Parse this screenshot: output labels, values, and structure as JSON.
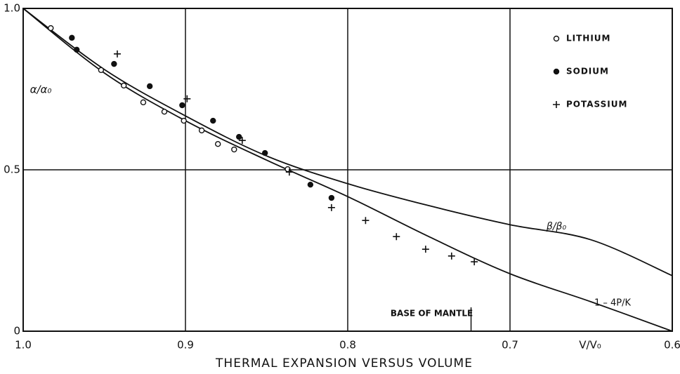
{
  "chart_data": {
    "type": "scatter",
    "title": "THERMAL EXPANSION VERSUS VOLUME",
    "x_label": "V/V₀",
    "y_label": "α/α₀",
    "xlim": [
      1,
      0.6
    ],
    "ylim": [
      0,
      1
    ],
    "xticks": [
      {
        "value": 1,
        "label": "1.0"
      },
      0.9,
      0.8,
      0.7,
      0.6
    ],
    "yticks": [
      0,
      0.5,
      {
        "value": 1,
        "label": "1.0"
      }
    ],
    "grid": true,
    "legend": "upper right",
    "series": [
      {
        "name": "LITHIUM",
        "color": "#111111",
        "marker": "open-circle",
        "x": [
          0.983,
          0.952,
          0.938,
          0.926,
          0.913,
          0.901,
          0.89,
          0.88,
          0.87,
          0.837
        ],
        "values": [
          0.939,
          0.809,
          0.761,
          0.709,
          0.68,
          0.652,
          0.622,
          0.58,
          0.563,
          0.502
        ]
      },
      {
        "name": "SODIUM",
        "color": "#111111",
        "marker": "filled-circle",
        "x": [
          0.97,
          0.967,
          0.944,
          0.922,
          0.902,
          0.883,
          0.867,
          0.851,
          0.823,
          0.81
        ],
        "values": [
          0.909,
          0.872,
          0.828,
          0.759,
          0.7,
          0.652,
          0.602,
          0.552,
          0.454,
          0.413
        ]
      },
      {
        "name": "POTASSIUM",
        "color": "#111111",
        "marker": "plus",
        "x": [
          0.942,
          0.899,
          0.865,
          0.836,
          0.81,
          0.789,
          0.77,
          0.752,
          0.736,
          0.722
        ],
        "values": [
          0.859,
          0.72,
          0.591,
          0.493,
          0.383,
          0.343,
          0.293,
          0.254,
          0.233,
          0.215
        ]
      }
    ],
    "curves": [
      {
        "label": "β/β₀",
        "color": "#111111",
        "x": [
          1,
          0.95,
          0.9,
          0.85,
          0.8,
          0.75,
          0.7,
          0.65,
          0.6
        ],
        "values": [
          1,
          0.811,
          0.667,
          0.543,
          0.457,
          0.389,
          0.33,
          0.283,
          0.172
        ]
      },
      {
        "label": "1 – 4P/K",
        "color": "#111111",
        "x": [
          1,
          0.95,
          0.9,
          0.85,
          0.8,
          0.75,
          0.7,
          0.65,
          0.6
        ],
        "values": [
          1,
          0.8,
          0.652,
          0.53,
          0.417,
          0.293,
          0.178,
          0.091,
          0
        ]
      }
    ],
    "annotation": {
      "text": "BASE OF MANTLE",
      "x": 0.724
    }
  }
}
